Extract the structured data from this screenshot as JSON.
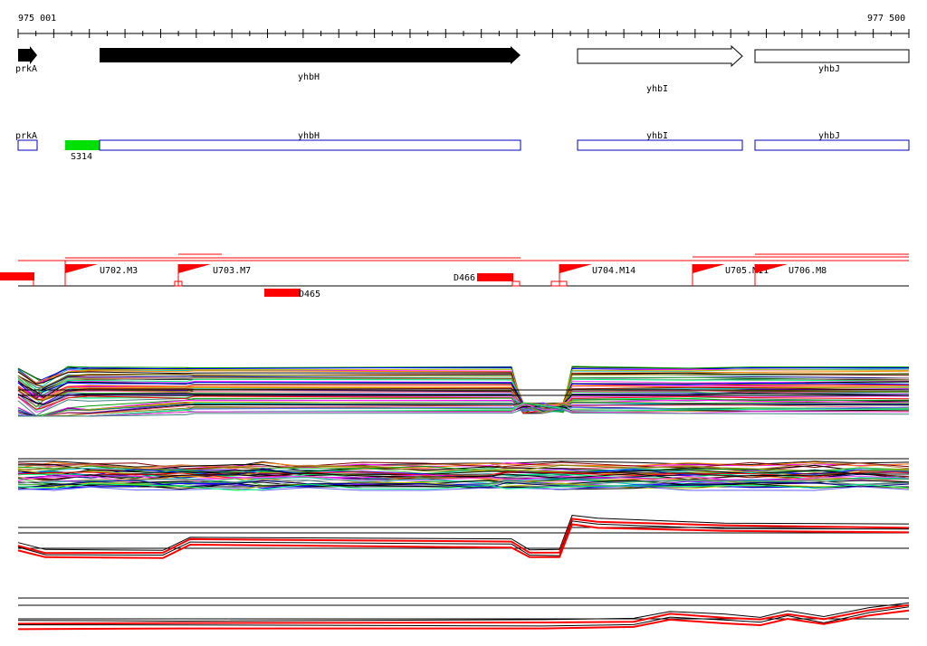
{
  "ruler": {
    "start_label": "975 001",
    "end_label": "977 500"
  },
  "genes": [
    {
      "name": "prkA",
      "strand": "forward",
      "style": "filled"
    },
    {
      "name": "yhbH",
      "strand": "forward",
      "style": "filled"
    },
    {
      "name": "yhbI",
      "strand": "forward",
      "style": "outline"
    },
    {
      "name": "yhbJ",
      "strand": "forward",
      "style": "outline"
    }
  ],
  "gene_boxes": [
    {
      "name": "prkA"
    },
    {
      "name": "yhbH"
    },
    {
      "name": "yhbI"
    },
    {
      "name": "yhbJ"
    }
  ],
  "highlight_feature": {
    "label": "S314",
    "color": "#00e000"
  },
  "upstream_features": [
    {
      "label": "U702.M3"
    },
    {
      "label": "U703.M7"
    },
    {
      "label": "U704.M14"
    },
    {
      "label": "U705.M11"
    },
    {
      "label": "U706.M8"
    }
  ],
  "downstream_features": [
    {
      "label": "D466"
    },
    {
      "label": "D465"
    }
  ],
  "colors": {
    "gene_fill": "#000000",
    "gene_outline": "#000000",
    "box_outline": "#0000c0",
    "feature_red": "#ff0000",
    "highlight_green": "#00e000"
  },
  "expression_tracks": [
    {
      "name": "track-1",
      "line_count": 60
    },
    {
      "name": "track-2",
      "line_count": 40
    },
    {
      "name": "track-3",
      "line_count": 4
    },
    {
      "name": "track-4",
      "line_count": 4
    }
  ]
}
